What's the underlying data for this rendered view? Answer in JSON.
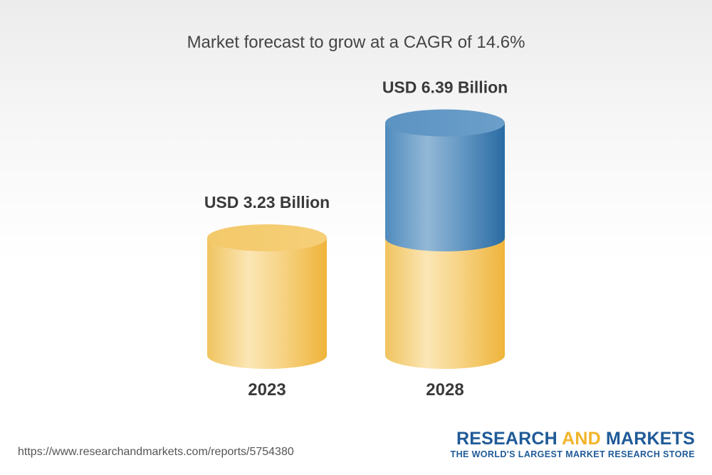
{
  "chart_data": {
    "type": "bar",
    "title": "Market forecast to grow at a CAGR of 14.6%",
    "categories": [
      "2023",
      "2028"
    ],
    "values": [
      3.23,
      6.39
    ],
    "value_labels": [
      "USD 3.23 Billion",
      "USD 6.39 Billion"
    ],
    "unit": "USD Billion",
    "style": "3d-cylinder",
    "colors": {
      "base": "#f2c35a",
      "growth": "#3f7fb5"
    },
    "grid": false,
    "legend": "none"
  },
  "footer": {
    "source_url": "https://www.researchandmarkets.com/reports/5754380",
    "brand_part1": "RESEARCH ",
    "brand_part2": "AND",
    "brand_part3": " MARKETS",
    "brand_tagline": "THE WORLD'S LARGEST MARKET RESEARCH STORE"
  }
}
